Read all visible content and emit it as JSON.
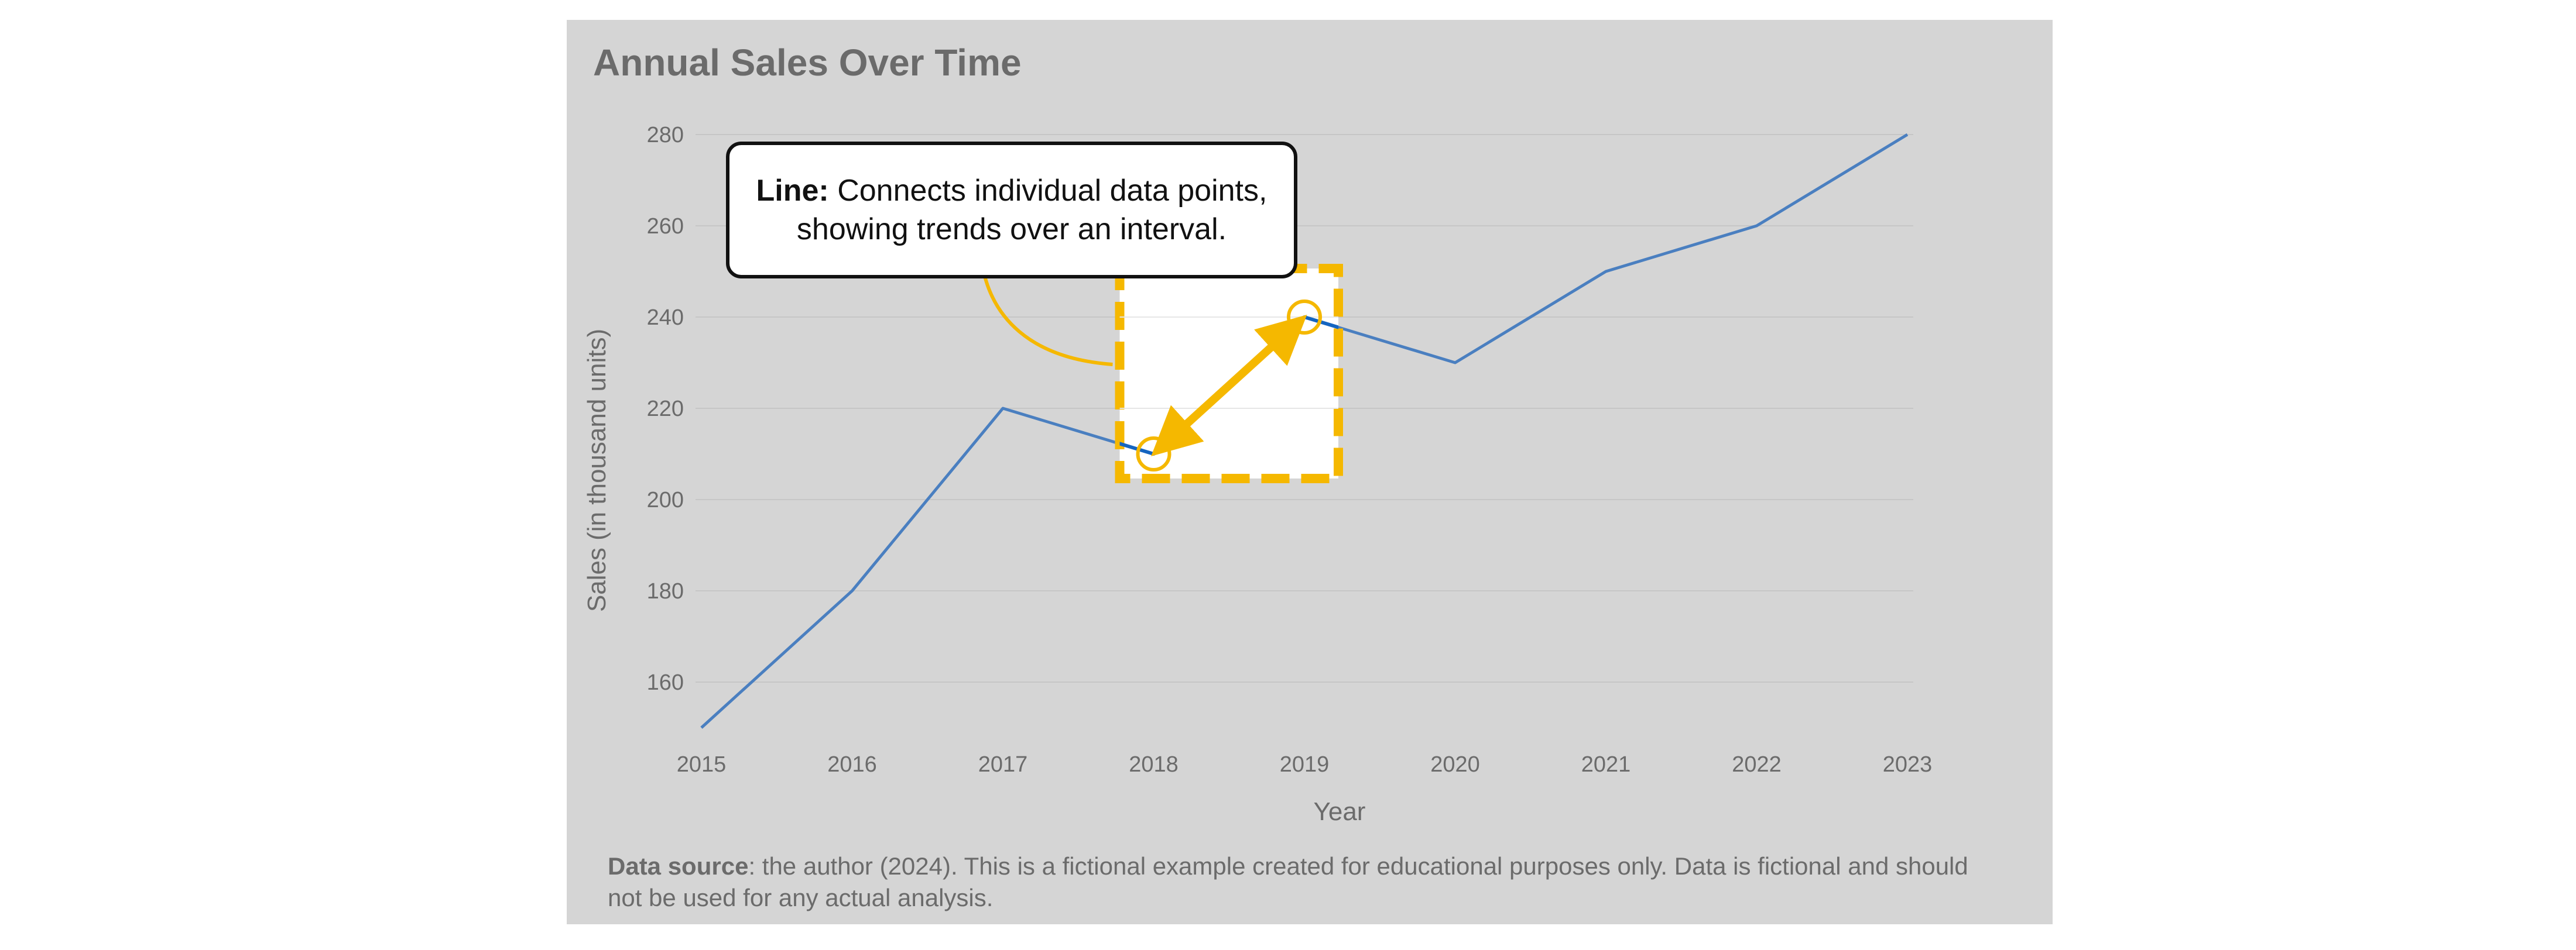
{
  "title": "Annual Sales Over Time",
  "callout": {
    "label": "Line:",
    "text": " Connects individual data points, showing trends over an interval."
  },
  "source": {
    "label": "Data source",
    "text": ": the author (2024). This is a fictional example created for educational purposes only. Data is fictional and should not be used for any actual analysis."
  },
  "colors": {
    "background": "#d5d5d5",
    "line": "#4a7fc0",
    "highlight_line": "#1565c0",
    "accent": "#f5b800",
    "text": "#6b6b6b"
  },
  "chart_data": {
    "type": "line",
    "title": "Annual Sales Over Time",
    "xlabel": "Year",
    "ylabel": "Sales (in thousand units)",
    "x": [
      2015,
      2016,
      2017,
      2018,
      2019,
      2020,
      2021,
      2022,
      2023
    ],
    "series": [
      {
        "values": [
          150,
          180,
          220,
          210,
          240,
          230,
          250,
          260,
          280
        ]
      }
    ],
    "yticks": [
      160,
      180,
      200,
      220,
      240,
      260,
      280
    ],
    "ylim": [
      140,
      290
    ],
    "grid": true,
    "legend": "none",
    "highlight": {
      "from": 2018,
      "to": 2019
    }
  }
}
